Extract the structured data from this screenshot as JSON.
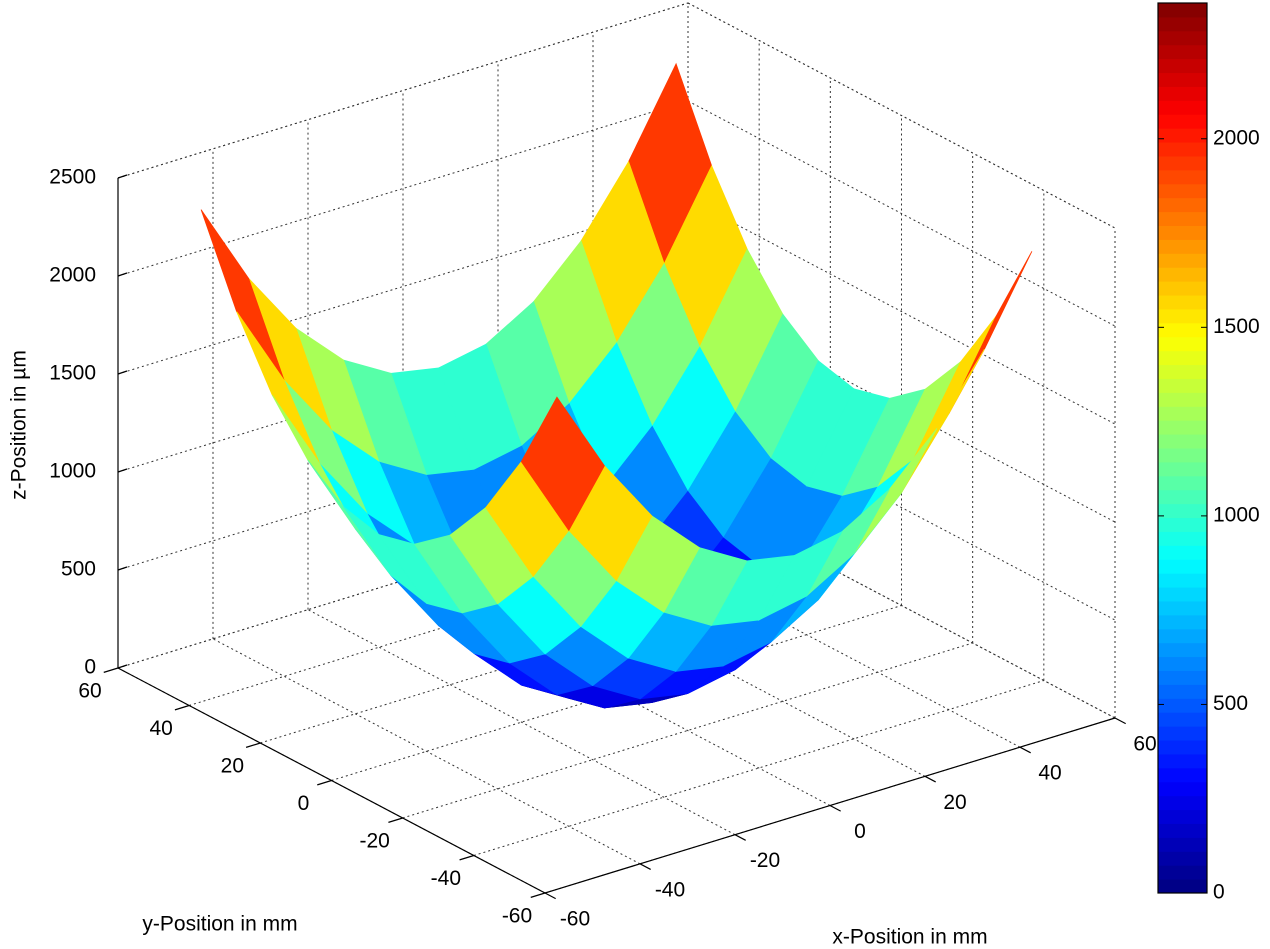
{
  "chart_data": {
    "type": "surface",
    "colormap": "jet",
    "xlabel": "x-Position in mm",
    "ylabel": "y-Position in mm",
    "zlabel": "z-Position in µm",
    "x": [
      -50,
      -40,
      -30,
      -20,
      -10,
      0,
      10,
      20,
      30,
      40,
      50
    ],
    "y": [
      -50,
      -40,
      -30,
      -20,
      -10,
      0,
      10,
      20,
      30,
      40,
      50
    ],
    "z": [
      [
        2360,
        1935,
        1605,
        1369,
        1227,
        1180,
        1227,
        1369,
        1605,
        1935,
        2360
      ],
      [
        1935,
        1510,
        1180,
        944,
        802,
        755,
        802,
        944,
        1180,
        1510,
        1935
      ],
      [
        1605,
        1180,
        850,
        614,
        472,
        425,
        472,
        614,
        850,
        1180,
        1605
      ],
      [
        1369,
        944,
        614,
        378,
        236,
        189,
        236,
        378,
        614,
        944,
        1369
      ],
      [
        1227,
        802,
        472,
        236,
        94,
        47,
        94,
        236,
        472,
        802,
        1227
      ],
      [
        1180,
        755,
        425,
        189,
        47,
        0,
        47,
        189,
        425,
        755,
        1180
      ],
      [
        1227,
        802,
        472,
        236,
        94,
        47,
        94,
        236,
        472,
        802,
        1227
      ],
      [
        1369,
        944,
        614,
        378,
        236,
        189,
        236,
        378,
        614,
        944,
        1369
      ],
      [
        1605,
        1180,
        850,
        614,
        472,
        425,
        472,
        614,
        850,
        1180,
        1605
      ],
      [
        1935,
        1510,
        1180,
        944,
        802,
        755,
        802,
        944,
        1180,
        1510,
        1935
      ],
      [
        2360,
        1935,
        1605,
        1369,
        1227,
        1180,
        1227,
        1369,
        1605,
        1935,
        2360
      ]
    ],
    "xlim": [
      -60,
      60
    ],
    "xticks": [
      -60,
      -40,
      -20,
      0,
      20,
      40,
      60
    ],
    "ylim": [
      -60,
      60
    ],
    "yticks": [
      -60,
      -40,
      -20,
      0,
      20,
      40,
      60
    ],
    "zlim": [
      0,
      2500
    ],
    "zticks": [
      0,
      500,
      1000,
      1500,
      2000,
      2500
    ],
    "grid": true,
    "colorbar": true,
    "clim": [
      0,
      2360
    ],
    "cticks": [
      0,
      500,
      1000,
      1500,
      2000
    ]
  }
}
